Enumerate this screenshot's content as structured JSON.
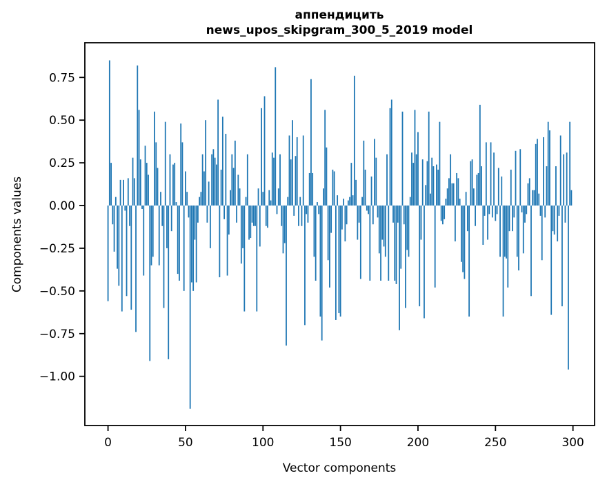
{
  "figure": {
    "title_line1": "аппендицить",
    "title_line2": "news_upos_skipgram_300_5_2019 model",
    "xlabel": "Vector components",
    "ylabel": "Components values"
  },
  "chart_data": {
    "type": "bar",
    "title": "аппендицить\nnews_upos_skipgram_300_5_2019 model",
    "title_line1": "аппендицить",
    "title_line2": "news_upos_skipgram_300_5_2019 model",
    "xlabel": "Vector components",
    "ylabel": "Components values",
    "x_start": 0,
    "bar_color": "#1f77b4",
    "bar_width": 0.8,
    "grid": false,
    "legend": null,
    "xlim": [
      -14.95,
      313.95
    ],
    "ylim": [
      -1.288,
      0.953
    ],
    "x_ticks": [
      0,
      50,
      100,
      150,
      200,
      250,
      300
    ],
    "x_tick_labels": [
      "0",
      "50",
      "100",
      "150",
      "200",
      "250",
      "300"
    ],
    "y_ticks": [
      0.75,
      0.5,
      0.25,
      0.0,
      -0.25,
      -0.5,
      -0.75,
      -1.0
    ],
    "y_tick_labels": [
      "0.75",
      "0.50",
      "0.25",
      "0.00",
      "−0.25",
      "−0.50",
      "−0.75",
      "−1.00"
    ],
    "values": [
      -0.56,
      0.85,
      0.25,
      -0.11,
      -0.27,
      0.05,
      -0.37,
      -0.47,
      0.15,
      -0.62,
      0.15,
      -0.03,
      -0.53,
      0.16,
      -0.12,
      -0.61,
      0.28,
      0.16,
      -0.74,
      0.82,
      0.56,
      0.27,
      -0.02,
      -0.41,
      0.35,
      0.25,
      0.18,
      -0.91,
      -0.35,
      -0.3,
      0.55,
      0.37,
      0.22,
      -0.35,
      0.08,
      -0.12,
      -0.6,
      0.49,
      -0.25,
      -0.9,
      0.3,
      -0.15,
      0.24,
      0.25,
      0.02,
      -0.4,
      -0.44,
      0.48,
      0.37,
      -0.5,
      0.2,
      0.08,
      -0.07,
      -1.19,
      -0.45,
      -0.5,
      -0.2,
      -0.45,
      -0.1,
      0.05,
      0.08,
      0.3,
      0.2,
      0.5,
      -0.1,
      0.14,
      -0.25,
      0.3,
      0.33,
      0.28,
      0.24,
      0.62,
      -0.42,
      0.21,
      0.52,
      -0.08,
      0.42,
      -0.41,
      -0.17,
      0.09,
      0.3,
      0.22,
      0.38,
      -0.1,
      0.18,
      0.1,
      -0.34,
      -0.25,
      -0.62,
      0.05,
      0.3,
      -0.2,
      -0.19,
      -0.1,
      -0.12,
      -0.12,
      -0.62,
      0.1,
      -0.24,
      0.57,
      0.08,
      0.64,
      -0.12,
      -0.13,
      0.09,
      0.03,
      0.31,
      0.28,
      0.81,
      -0.05,
      0.1,
      0.3,
      -0.12,
      -0.28,
      -0.22,
      -0.82,
      0.05,
      0.41,
      0.27,
      0.5,
      -0.06,
      0.29,
      0.4,
      -0.12,
      0.05,
      -0.12,
      0.41,
      -0.7,
      -0.05,
      -0.1,
      0.19,
      0.74,
      0.19,
      -0.3,
      -0.44,
      0.02,
      -0.05,
      -0.65,
      -0.79,
      0.1,
      0.56,
      0.34,
      -0.32,
      -0.48,
      -0.16,
      0.21,
      0.2,
      -0.67,
      0.06,
      -0.63,
      -0.65,
      -0.14,
      0.04,
      -0.21,
      -0.11,
      0.03,
      0.05,
      0.25,
      0.06,
      0.76,
      0.15,
      -0.2,
      -0.1,
      -0.43,
      0.05,
      0.38,
      0.21,
      -0.03,
      -0.05,
      -0.44,
      0.17,
      -0.11,
      0.39,
      0.28,
      -0.07,
      -0.28,
      -0.44,
      -0.2,
      -0.24,
      -0.3,
      0.3,
      -0.44,
      0.57,
      0.62,
      -0.1,
      -0.44,
      -0.46,
      -0.1,
      -0.73,
      -0.37,
      0.55,
      -0.11,
      -0.6,
      -0.26,
      -0.3,
      0.05,
      0.31,
      0.25,
      0.56,
      0.3,
      0.43,
      -0.59,
      -0.2,
      0.27,
      -0.66,
      0.12,
      0.26,
      0.55,
      0.07,
      0.28,
      0.23,
      -0.48,
      0.24,
      0.21,
      0.49,
      -0.09,
      -0.11,
      -0.08,
      0.04,
      0.1,
      0.16,
      0.3,
      0.13,
      0.13,
      -0.21,
      0.19,
      0.16,
      0.04,
      -0.33,
      -0.39,
      -0.43,
      0.08,
      -0.15,
      -0.65,
      0.26,
      0.27,
      0.1,
      -0.12,
      0.18,
      0.19,
      0.59,
      0.23,
      -0.23,
      -0.06,
      0.37,
      -0.2,
      -0.05,
      0.37,
      -0.07,
      0.31,
      -0.09,
      -0.05,
      0.22,
      -0.3,
      0.17,
      -0.65,
      -0.3,
      -0.31,
      -0.48,
      -0.15,
      0.21,
      -0.15,
      -0.07,
      0.32,
      -0.3,
      -0.38,
      0.33,
      -0.04,
      -0.28,
      -0.1,
      -0.05,
      0.13,
      0.16,
      -0.53,
      0.09,
      0.09,
      0.36,
      0.39,
      0.07,
      -0.06,
      -0.32,
      0.4,
      -0.07,
      0.23,
      0.49,
      0.44,
      -0.64,
      -0.15,
      -0.17,
      0.23,
      -0.21,
      -0.06,
      0.41,
      -0.59,
      0.3,
      -0.1,
      0.31,
      -0.96,
      0.49,
      0.09
    ]
  }
}
